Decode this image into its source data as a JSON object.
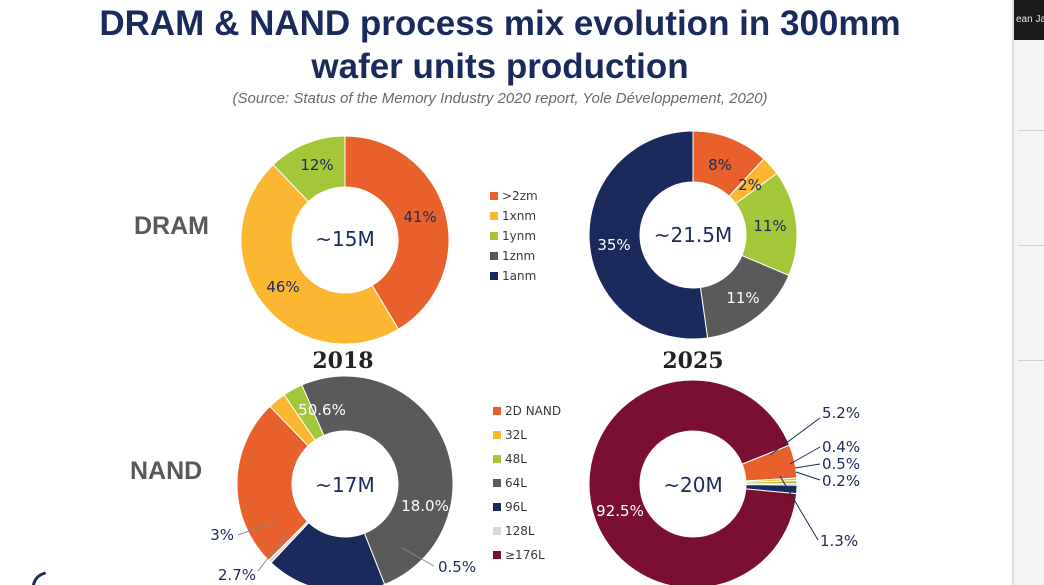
{
  "title_line1": "DRAM & NAND process mix evolution in 300mm",
  "title_line2": "wafer units production",
  "source": "(Source: Status of the Memory Industry 2020 report, Yole Développement, 2020)",
  "side_panel_text": "ean Ja",
  "rows": {
    "dram": "DRAM",
    "nand": "NAND"
  },
  "years": [
    "2018",
    "2025"
  ],
  "colors": {
    "title": "#1a2a5c",
    "dram_legend": [
      "#e8602c",
      "#fbb731",
      "#a4c639",
      "#5a5a5a",
      "#1a2a5c"
    ],
    "nand_legend": [
      "#e8602c",
      "#fbb731",
      "#a4c639",
      "#5a5a5a",
      "#1a2a5c",
      "#d9d9d9",
      "#7a0f32"
    ]
  },
  "chart_data": [
    {
      "type": "pie",
      "title": "DRAM 2018",
      "center_label": "~15M",
      "categories": [
        ">2zm",
        "1xnm",
        "1ynm"
      ],
      "values": [
        41,
        46,
        12
      ],
      "labels": [
        "41%",
        "46%",
        "12%"
      ]
    },
    {
      "type": "pie",
      "title": "DRAM 2025",
      "center_label": "~21.5M",
      "categories": [
        ">2zm",
        "1xnm",
        "1ynm",
        "1znm",
        "1anm"
      ],
      "values": [
        8,
        2,
        11,
        11,
        35
      ],
      "labels": [
        "8%",
        "2%",
        "11%",
        "11%",
        "35%"
      ]
    },
    {
      "type": "pie",
      "title": "NAND 2018",
      "center_label": "~17M",
      "categories": [
        "2D NAND",
        "32L",
        "48L",
        "64L",
        "96L",
        "128L"
      ],
      "values": [
        25.3,
        2.7,
        3,
        50.6,
        18.0,
        0.5
      ],
      "labels": [
        "25.3%",
        "2.7%",
        "3%",
        "50.6%",
        "18.0%",
        "0.5%"
      ]
    },
    {
      "type": "pie",
      "title": "NAND 2025",
      "center_label": "~20M",
      "categories": [
        "2D NAND",
        "32L",
        "48L",
        "64L",
        "96L",
        "128L",
        "≥176L"
      ],
      "values": [
        5.2,
        0.4,
        0.5,
        0.2,
        1.3,
        0,
        92.5
      ],
      "labels": [
        "5.2%",
        "0.4%",
        "0.5%",
        "0.2%",
        "1.3%",
        "",
        "92.5%"
      ]
    }
  ],
  "legends": {
    "dram": [
      ">2zm",
      "1xnm",
      "1ynm",
      "1znm",
      "1anm"
    ],
    "nand": [
      "2D NAND",
      "32L",
      "48L",
      "64L",
      "96L",
      "128L",
      "≥176L"
    ]
  }
}
